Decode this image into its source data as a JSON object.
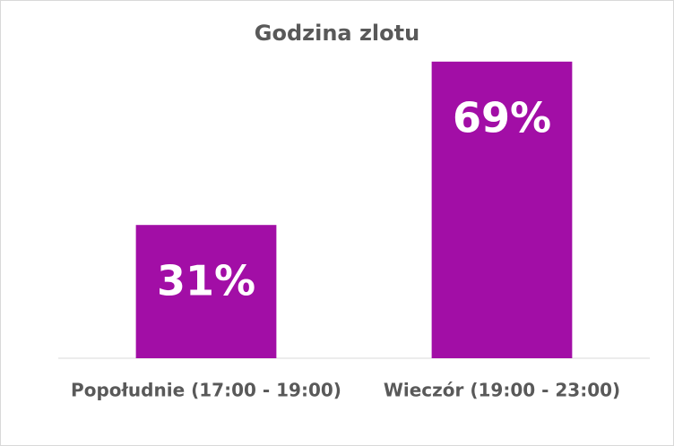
{
  "chart_data": {
    "type": "bar",
    "title": "Godzina zlotu",
    "categories": [
      "Popołudnie (17:00 - 19:00)",
      "Wieczór (19:00 - 23:00)"
    ],
    "values": [
      31,
      69
    ],
    "value_labels": [
      "31%",
      "69%"
    ],
    "color": "#a20ea6"
  }
}
